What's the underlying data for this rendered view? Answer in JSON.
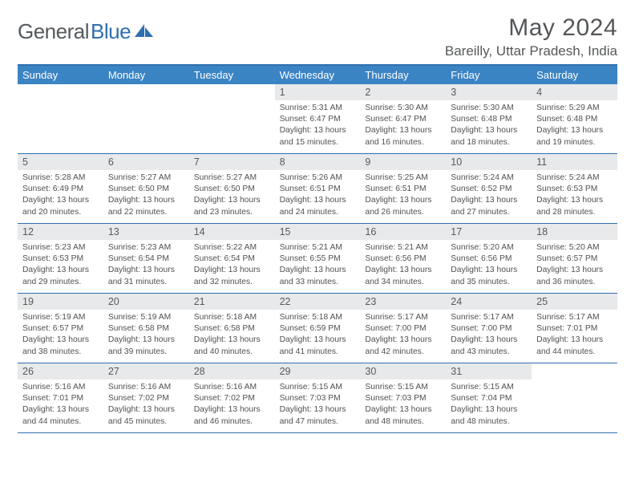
{
  "brand": {
    "part1": "General",
    "part2": "Blue"
  },
  "title": "May 2024",
  "location": "Bareilly, Uttar Pradesh, India",
  "colors": {
    "header_bar": "#3b84c4",
    "border": "#2f6fb0",
    "daynum_bg": "#e8e9ea",
    "text": "#56595c",
    "brand_blue": "#2f6fb0",
    "bg": "#ffffff"
  },
  "weekdays": [
    "Sunday",
    "Monday",
    "Tuesday",
    "Wednesday",
    "Thursday",
    "Friday",
    "Saturday"
  ],
  "weeks": [
    [
      {
        "n": "",
        "sr": "",
        "ss": "",
        "dl": ""
      },
      {
        "n": "",
        "sr": "",
        "ss": "",
        "dl": ""
      },
      {
        "n": "",
        "sr": "",
        "ss": "",
        "dl": ""
      },
      {
        "n": "1",
        "sr": "5:31 AM",
        "ss": "6:47 PM",
        "dl": "13 hours and 15 minutes."
      },
      {
        "n": "2",
        "sr": "5:30 AM",
        "ss": "6:47 PM",
        "dl": "13 hours and 16 minutes."
      },
      {
        "n": "3",
        "sr": "5:30 AM",
        "ss": "6:48 PM",
        "dl": "13 hours and 18 minutes."
      },
      {
        "n": "4",
        "sr": "5:29 AM",
        "ss": "6:48 PM",
        "dl": "13 hours and 19 minutes."
      }
    ],
    [
      {
        "n": "5",
        "sr": "5:28 AM",
        "ss": "6:49 PM",
        "dl": "13 hours and 20 minutes."
      },
      {
        "n": "6",
        "sr": "5:27 AM",
        "ss": "6:50 PM",
        "dl": "13 hours and 22 minutes."
      },
      {
        "n": "7",
        "sr": "5:27 AM",
        "ss": "6:50 PM",
        "dl": "13 hours and 23 minutes."
      },
      {
        "n": "8",
        "sr": "5:26 AM",
        "ss": "6:51 PM",
        "dl": "13 hours and 24 minutes."
      },
      {
        "n": "9",
        "sr": "5:25 AM",
        "ss": "6:51 PM",
        "dl": "13 hours and 26 minutes."
      },
      {
        "n": "10",
        "sr": "5:24 AM",
        "ss": "6:52 PM",
        "dl": "13 hours and 27 minutes."
      },
      {
        "n": "11",
        "sr": "5:24 AM",
        "ss": "6:53 PM",
        "dl": "13 hours and 28 minutes."
      }
    ],
    [
      {
        "n": "12",
        "sr": "5:23 AM",
        "ss": "6:53 PM",
        "dl": "13 hours and 29 minutes."
      },
      {
        "n": "13",
        "sr": "5:23 AM",
        "ss": "6:54 PM",
        "dl": "13 hours and 31 minutes."
      },
      {
        "n": "14",
        "sr": "5:22 AM",
        "ss": "6:54 PM",
        "dl": "13 hours and 32 minutes."
      },
      {
        "n": "15",
        "sr": "5:21 AM",
        "ss": "6:55 PM",
        "dl": "13 hours and 33 minutes."
      },
      {
        "n": "16",
        "sr": "5:21 AM",
        "ss": "6:56 PM",
        "dl": "13 hours and 34 minutes."
      },
      {
        "n": "17",
        "sr": "5:20 AM",
        "ss": "6:56 PM",
        "dl": "13 hours and 35 minutes."
      },
      {
        "n": "18",
        "sr": "5:20 AM",
        "ss": "6:57 PM",
        "dl": "13 hours and 36 minutes."
      }
    ],
    [
      {
        "n": "19",
        "sr": "5:19 AM",
        "ss": "6:57 PM",
        "dl": "13 hours and 38 minutes."
      },
      {
        "n": "20",
        "sr": "5:19 AM",
        "ss": "6:58 PM",
        "dl": "13 hours and 39 minutes."
      },
      {
        "n": "21",
        "sr": "5:18 AM",
        "ss": "6:58 PM",
        "dl": "13 hours and 40 minutes."
      },
      {
        "n": "22",
        "sr": "5:18 AM",
        "ss": "6:59 PM",
        "dl": "13 hours and 41 minutes."
      },
      {
        "n": "23",
        "sr": "5:17 AM",
        "ss": "7:00 PM",
        "dl": "13 hours and 42 minutes."
      },
      {
        "n": "24",
        "sr": "5:17 AM",
        "ss": "7:00 PM",
        "dl": "13 hours and 43 minutes."
      },
      {
        "n": "25",
        "sr": "5:17 AM",
        "ss": "7:01 PM",
        "dl": "13 hours and 44 minutes."
      }
    ],
    [
      {
        "n": "26",
        "sr": "5:16 AM",
        "ss": "7:01 PM",
        "dl": "13 hours and 44 minutes."
      },
      {
        "n": "27",
        "sr": "5:16 AM",
        "ss": "7:02 PM",
        "dl": "13 hours and 45 minutes."
      },
      {
        "n": "28",
        "sr": "5:16 AM",
        "ss": "7:02 PM",
        "dl": "13 hours and 46 minutes."
      },
      {
        "n": "29",
        "sr": "5:15 AM",
        "ss": "7:03 PM",
        "dl": "13 hours and 47 minutes."
      },
      {
        "n": "30",
        "sr": "5:15 AM",
        "ss": "7:03 PM",
        "dl": "13 hours and 48 minutes."
      },
      {
        "n": "31",
        "sr": "5:15 AM",
        "ss": "7:04 PM",
        "dl": "13 hours and 48 minutes."
      },
      {
        "n": "",
        "sr": "",
        "ss": "",
        "dl": ""
      }
    ]
  ],
  "labels": {
    "sunrise": "Sunrise:",
    "sunset": "Sunset:",
    "daylight": "Daylight:"
  }
}
